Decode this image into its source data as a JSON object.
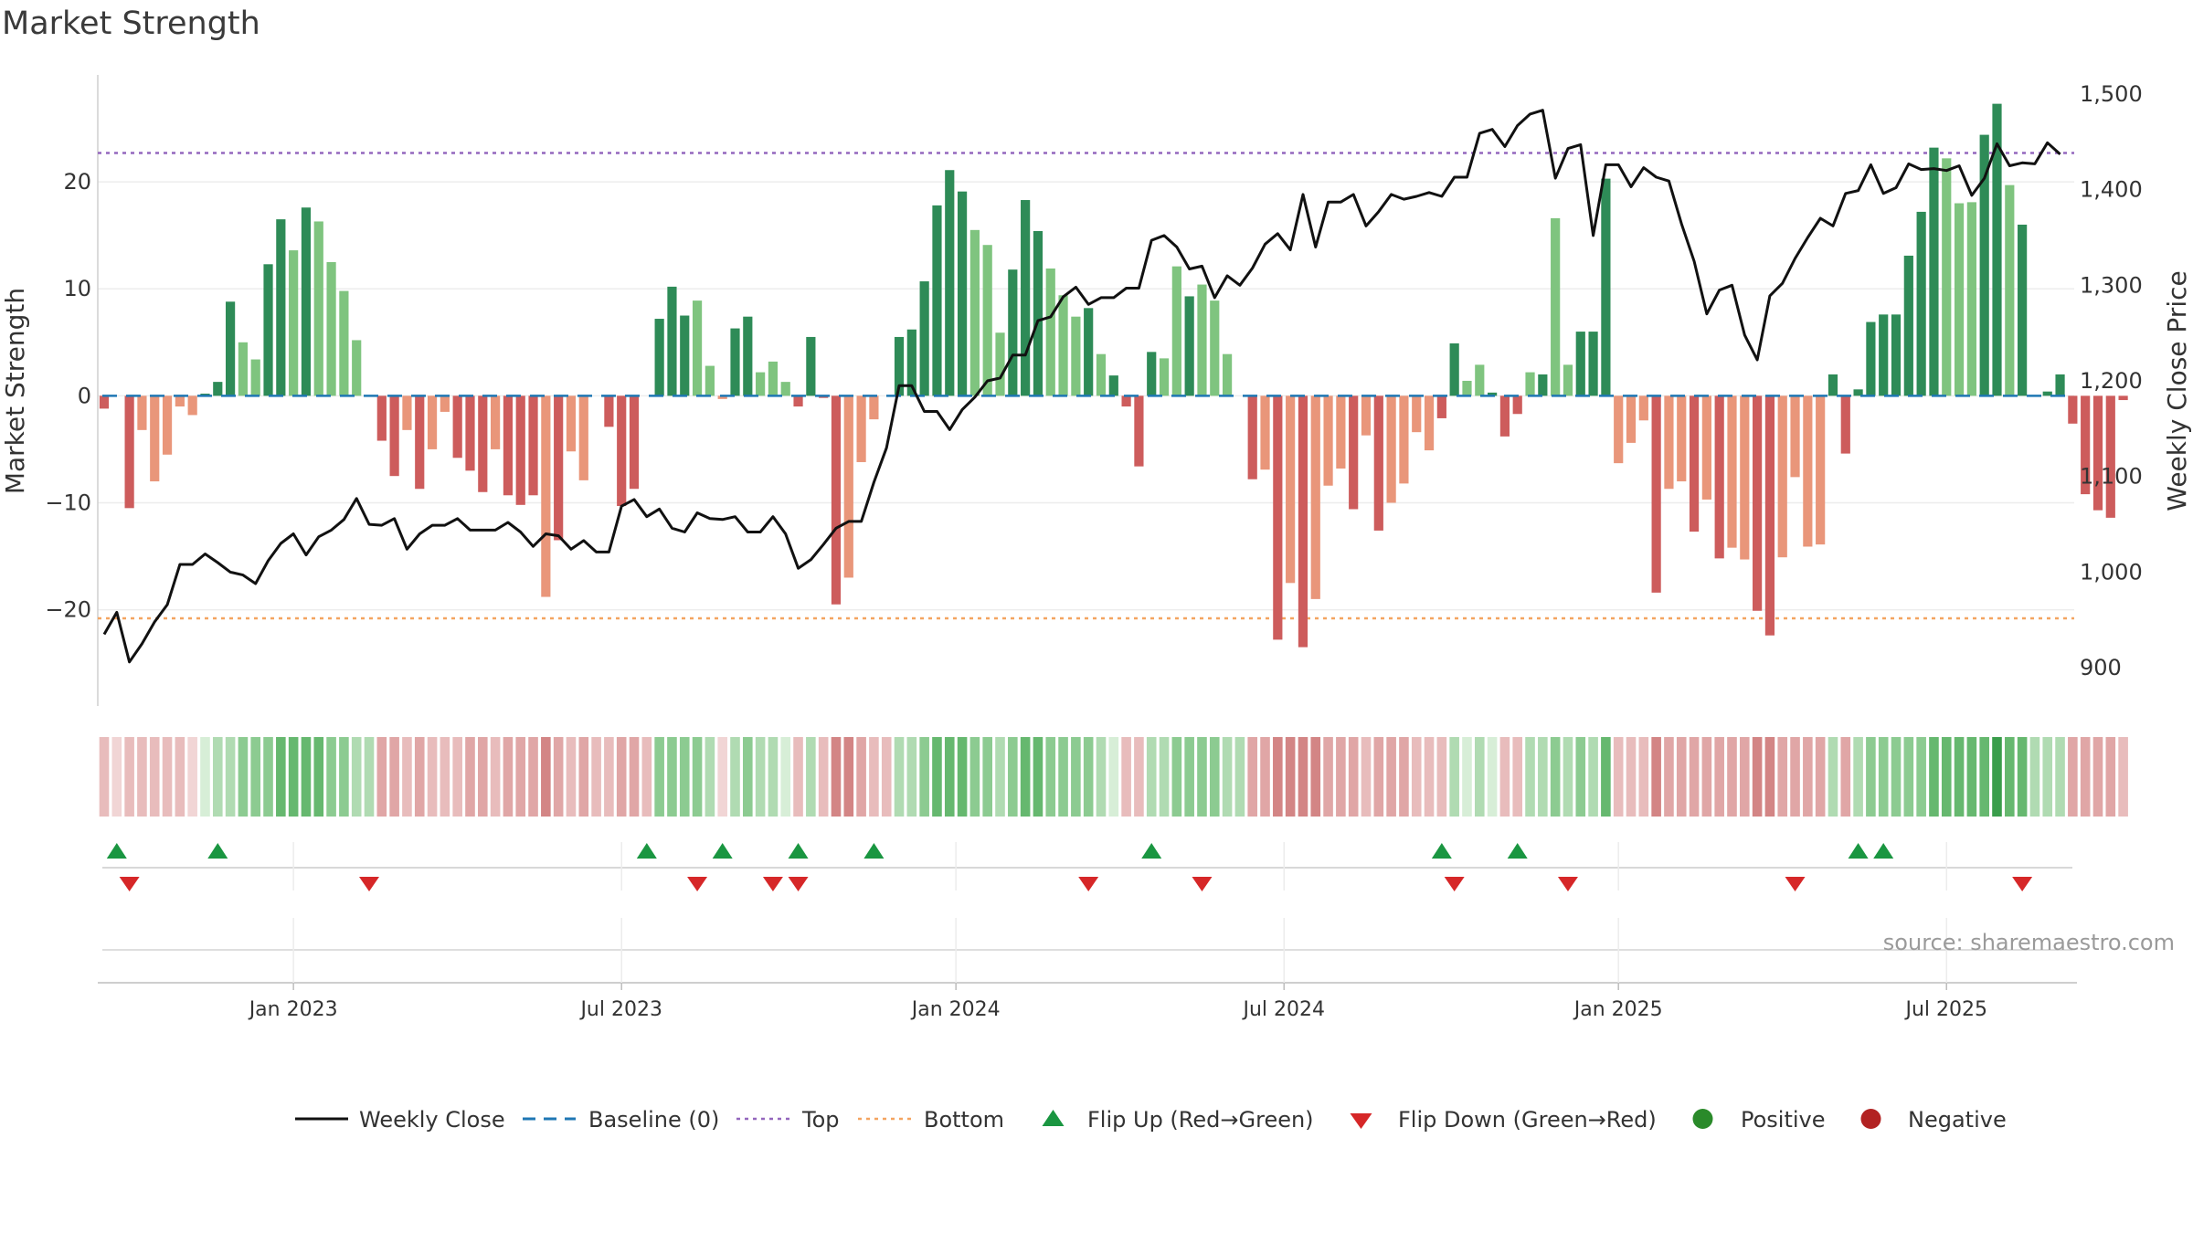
{
  "title": "Market Strength",
  "source": "source: sharemaestro.com",
  "colors": {
    "strong_green": "#2e8b57",
    "light_green": "#7fc47f",
    "strong_red": "#cd5c5c",
    "light_red": "#e9967a",
    "close_line": "#111111",
    "baseline": "#1f77b4",
    "top": "#9467bd",
    "bottom": "#f4a460",
    "flip_up": "#1a9641",
    "flip_down": "#d62728"
  },
  "chart_data": {
    "type": "bar",
    "ylabel_left": "Market Strength",
    "ylabel_right": "Weekly Close Price",
    "ylim_left": [
      -29,
      30
    ],
    "ylim_right": [
      860,
      1520
    ],
    "left_ticks": [
      20,
      10,
      0,
      -10,
      -20
    ],
    "left_tick_labels": [
      "20",
      "10",
      "0",
      "−10",
      "−20"
    ],
    "right_ticks": [
      1500,
      1400,
      1300,
      1200,
      1100,
      1000,
      900
    ],
    "right_tick_labels": [
      "1,500",
      "1,400",
      "1,300",
      "1,200",
      "1,100",
      "1,000",
      "900"
    ],
    "x_tick_weeks": [
      15,
      41,
      67.5,
      93.5,
      120,
      146
    ],
    "x_tick_labels": [
      "Jan 2023",
      "Jul 2023",
      "Jan 2024",
      "Jul 2024",
      "Jan 2025",
      "Jul 2025"
    ],
    "top_line": 22.7,
    "bottom_line": -20.8,
    "strength": [
      -1.2,
      0,
      -10.5,
      -3.2,
      -8,
      -5.5,
      -1,
      -1.8,
      0.2,
      1.3,
      8.8,
      5,
      3.4,
      12.3,
      16.5,
      13.6,
      17.6,
      16.3,
      12.5,
      9.8,
      5.2,
      0,
      -4.2,
      -7.5,
      -3.2,
      -8.7,
      -5,
      -1.5,
      -5.8,
      -7,
      -9,
      -5,
      -9.3,
      -10.2,
      -9.3,
      -18.8,
      -13.5,
      -5.2,
      -7.9,
      0,
      -2.9,
      -10.3,
      -8.7,
      0,
      7.2,
      10.2,
      7.5,
      8.9,
      2.8,
      -0.3,
      6.3,
      7.4,
      2.2,
      3.2,
      1.3,
      -1,
      5.5,
      -0.2,
      -19.5,
      -17,
      -6.2,
      -2.2,
      0,
      5.5,
      6.2,
      10.7,
      17.8,
      21.1,
      19.1,
      15.5,
      14.1,
      5.9,
      11.8,
      18.3,
      15.4,
      11.9,
      9.4,
      7.4,
      8.2,
      3.9,
      1.9,
      -1,
      -6.6,
      4.1,
      3.5,
      12.1,
      9.3,
      10.4,
      8.9,
      3.9,
      0,
      -7.8,
      -6.9,
      -22.8,
      -17.5,
      -23.5,
      -19,
      -8.4,
      -6.8,
      -10.6,
      -3.7,
      -12.6,
      -10,
      -8.2,
      -3.4,
      -5.1,
      -2.1,
      4.9,
      1.4,
      2.9,
      0.3,
      -3.8,
      -1.7,
      2.2,
      2,
      16.6,
      2.9,
      6,
      6,
      20.3,
      -6.3,
      -4.4,
      -2.3,
      -18.4,
      -8.7,
      -8,
      -12.7,
      -9.7,
      -15.2,
      -14.2,
      -15.3,
      -20.1,
      -22.4,
      -15.1,
      -7.6,
      -14.1,
      -13.9,
      2,
      -5.4,
      0.6,
      6.9,
      7.6,
      7.6,
      13.1,
      17.2,
      23.2,
      22.2,
      18,
      18.1,
      24.4,
      27.3,
      19.7,
      16,
      0,
      0.4,
      2,
      -2.6,
      -9.2,
      -10.7,
      -11.4,
      -0.4
    ],
    "light_bars": [
      3,
      4,
      5,
      6,
      7,
      11,
      12,
      15,
      17,
      18,
      19,
      20,
      24,
      26,
      27,
      31,
      35,
      37,
      38,
      47,
      48,
      49,
      52,
      53,
      54,
      59,
      60,
      61,
      69,
      70,
      71,
      75,
      76,
      77,
      79,
      84,
      85,
      87,
      88,
      89,
      92,
      94,
      96,
      97,
      98,
      100,
      102,
      103,
      104,
      105,
      108,
      109,
      113,
      115,
      116,
      120,
      121,
      122,
      124,
      125,
      127,
      129,
      130,
      133,
      134,
      135,
      136,
      146,
      147,
      148,
      151
    ],
    "close": [
      935,
      958,
      906,
      925,
      948,
      966,
      1008,
      1008,
      1019,
      1010,
      1000,
      997,
      988,
      1012,
      1030,
      1040,
      1018,
      1037,
      1044,
      1055,
      1077,
      1050,
      1049,
      1056,
      1024,
      1040,
      1049,
      1049,
      1056,
      1044,
      1044,
      1044,
      1052,
      1042,
      1027,
      1040,
      1038,
      1024,
      1033,
      1021,
      1021,
      1069,
      1076,
      1058,
      1066,
      1046,
      1042,
      1062,
      1056,
      1055,
      1058,
      1042,
      1042,
      1058,
      1040,
      1004,
      1013,
      1029,
      1046,
      1053,
      1053,
      1094,
      1130,
      1195,
      1195,
      1168,
      1168,
      1149,
      1170,
      1183,
      1200,
      1203,
      1227,
      1227,
      1263,
      1267,
      1288,
      1298,
      1280,
      1287,
      1287,
      1297,
      1297,
      1347,
      1352,
      1340,
      1317,
      1320,
      1287,
      1310,
      1300,
      1318,
      1343,
      1354,
      1337,
      1395,
      1340,
      1387,
      1387,
      1395,
      1362,
      1377,
      1395,
      1390,
      1393,
      1397,
      1393,
      1413,
      1413,
      1459,
      1463,
      1445,
      1467,
      1479,
      1483,
      1412,
      1443,
      1447,
      1352,
      1426,
      1426,
      1403,
      1423,
      1413,
      1409,
      1364,
      1325,
      1270,
      1295,
      1300,
      1248,
      1222,
      1289,
      1302,
      1328,
      1350,
      1370,
      1362,
      1396,
      1399,
      1426,
      1396,
      1402,
      1427,
      1421,
      1422,
      1420,
      1425,
      1394,
      1412,
      1448,
      1425,
      1428,
      1427,
      1449,
      1437
    ],
    "heat_intensity": [
      1,
      0,
      1,
      1,
      1,
      1,
      1,
      0,
      0,
      1,
      1,
      2,
      2,
      2,
      3,
      3,
      3,
      3,
      2,
      2,
      1,
      1,
      2,
      2,
      1,
      2,
      1,
      1,
      1,
      2,
      2,
      1,
      2,
      2,
      2,
      3,
      2,
      1,
      2,
      1,
      1,
      2,
      2,
      1,
      2,
      2,
      2,
      2,
      1,
      0,
      1,
      2,
      1,
      1,
      0,
      1,
      1,
      1,
      3,
      3,
      2,
      1,
      1,
      1,
      1,
      2,
      3,
      3,
      3,
      2,
      2,
      1,
      2,
      3,
      3,
      2,
      2,
      2,
      2,
      1,
      0,
      1,
      1,
      1,
      1,
      2,
      2,
      2,
      2,
      1,
      1,
      2,
      2,
      3,
      3,
      3,
      3,
      2,
      2,
      2,
      1,
      2,
      2,
      2,
      1,
      1,
      1,
      1,
      0,
      1,
      0,
      1,
      1,
      1,
      1,
      2,
      1,
      2,
      1,
      3,
      1,
      1,
      1,
      3,
      2,
      2,
      2,
      2,
      2,
      2,
      2,
      3,
      3,
      2,
      2,
      2,
      2,
      1,
      2,
      1,
      2,
      2,
      2,
      2,
      2,
      3,
      3,
      3,
      3,
      3,
      4,
      3,
      3,
      1,
      1,
      1,
      2,
      2,
      2,
      2,
      1
    ],
    "flip_up_weeks": [
      1,
      9,
      43,
      49,
      55,
      61,
      83,
      106,
      112,
      139,
      141
    ],
    "flip_down_weeks": [
      2,
      21,
      47,
      53,
      55,
      78,
      87,
      107,
      116,
      134,
      152
    ],
    "legend": [
      "Weekly Close",
      "Baseline (0)",
      "Top",
      "Bottom",
      "Flip Up (Red→Green)",
      "Flip Down (Green→Red)",
      "Positive",
      "Negative"
    ]
  }
}
